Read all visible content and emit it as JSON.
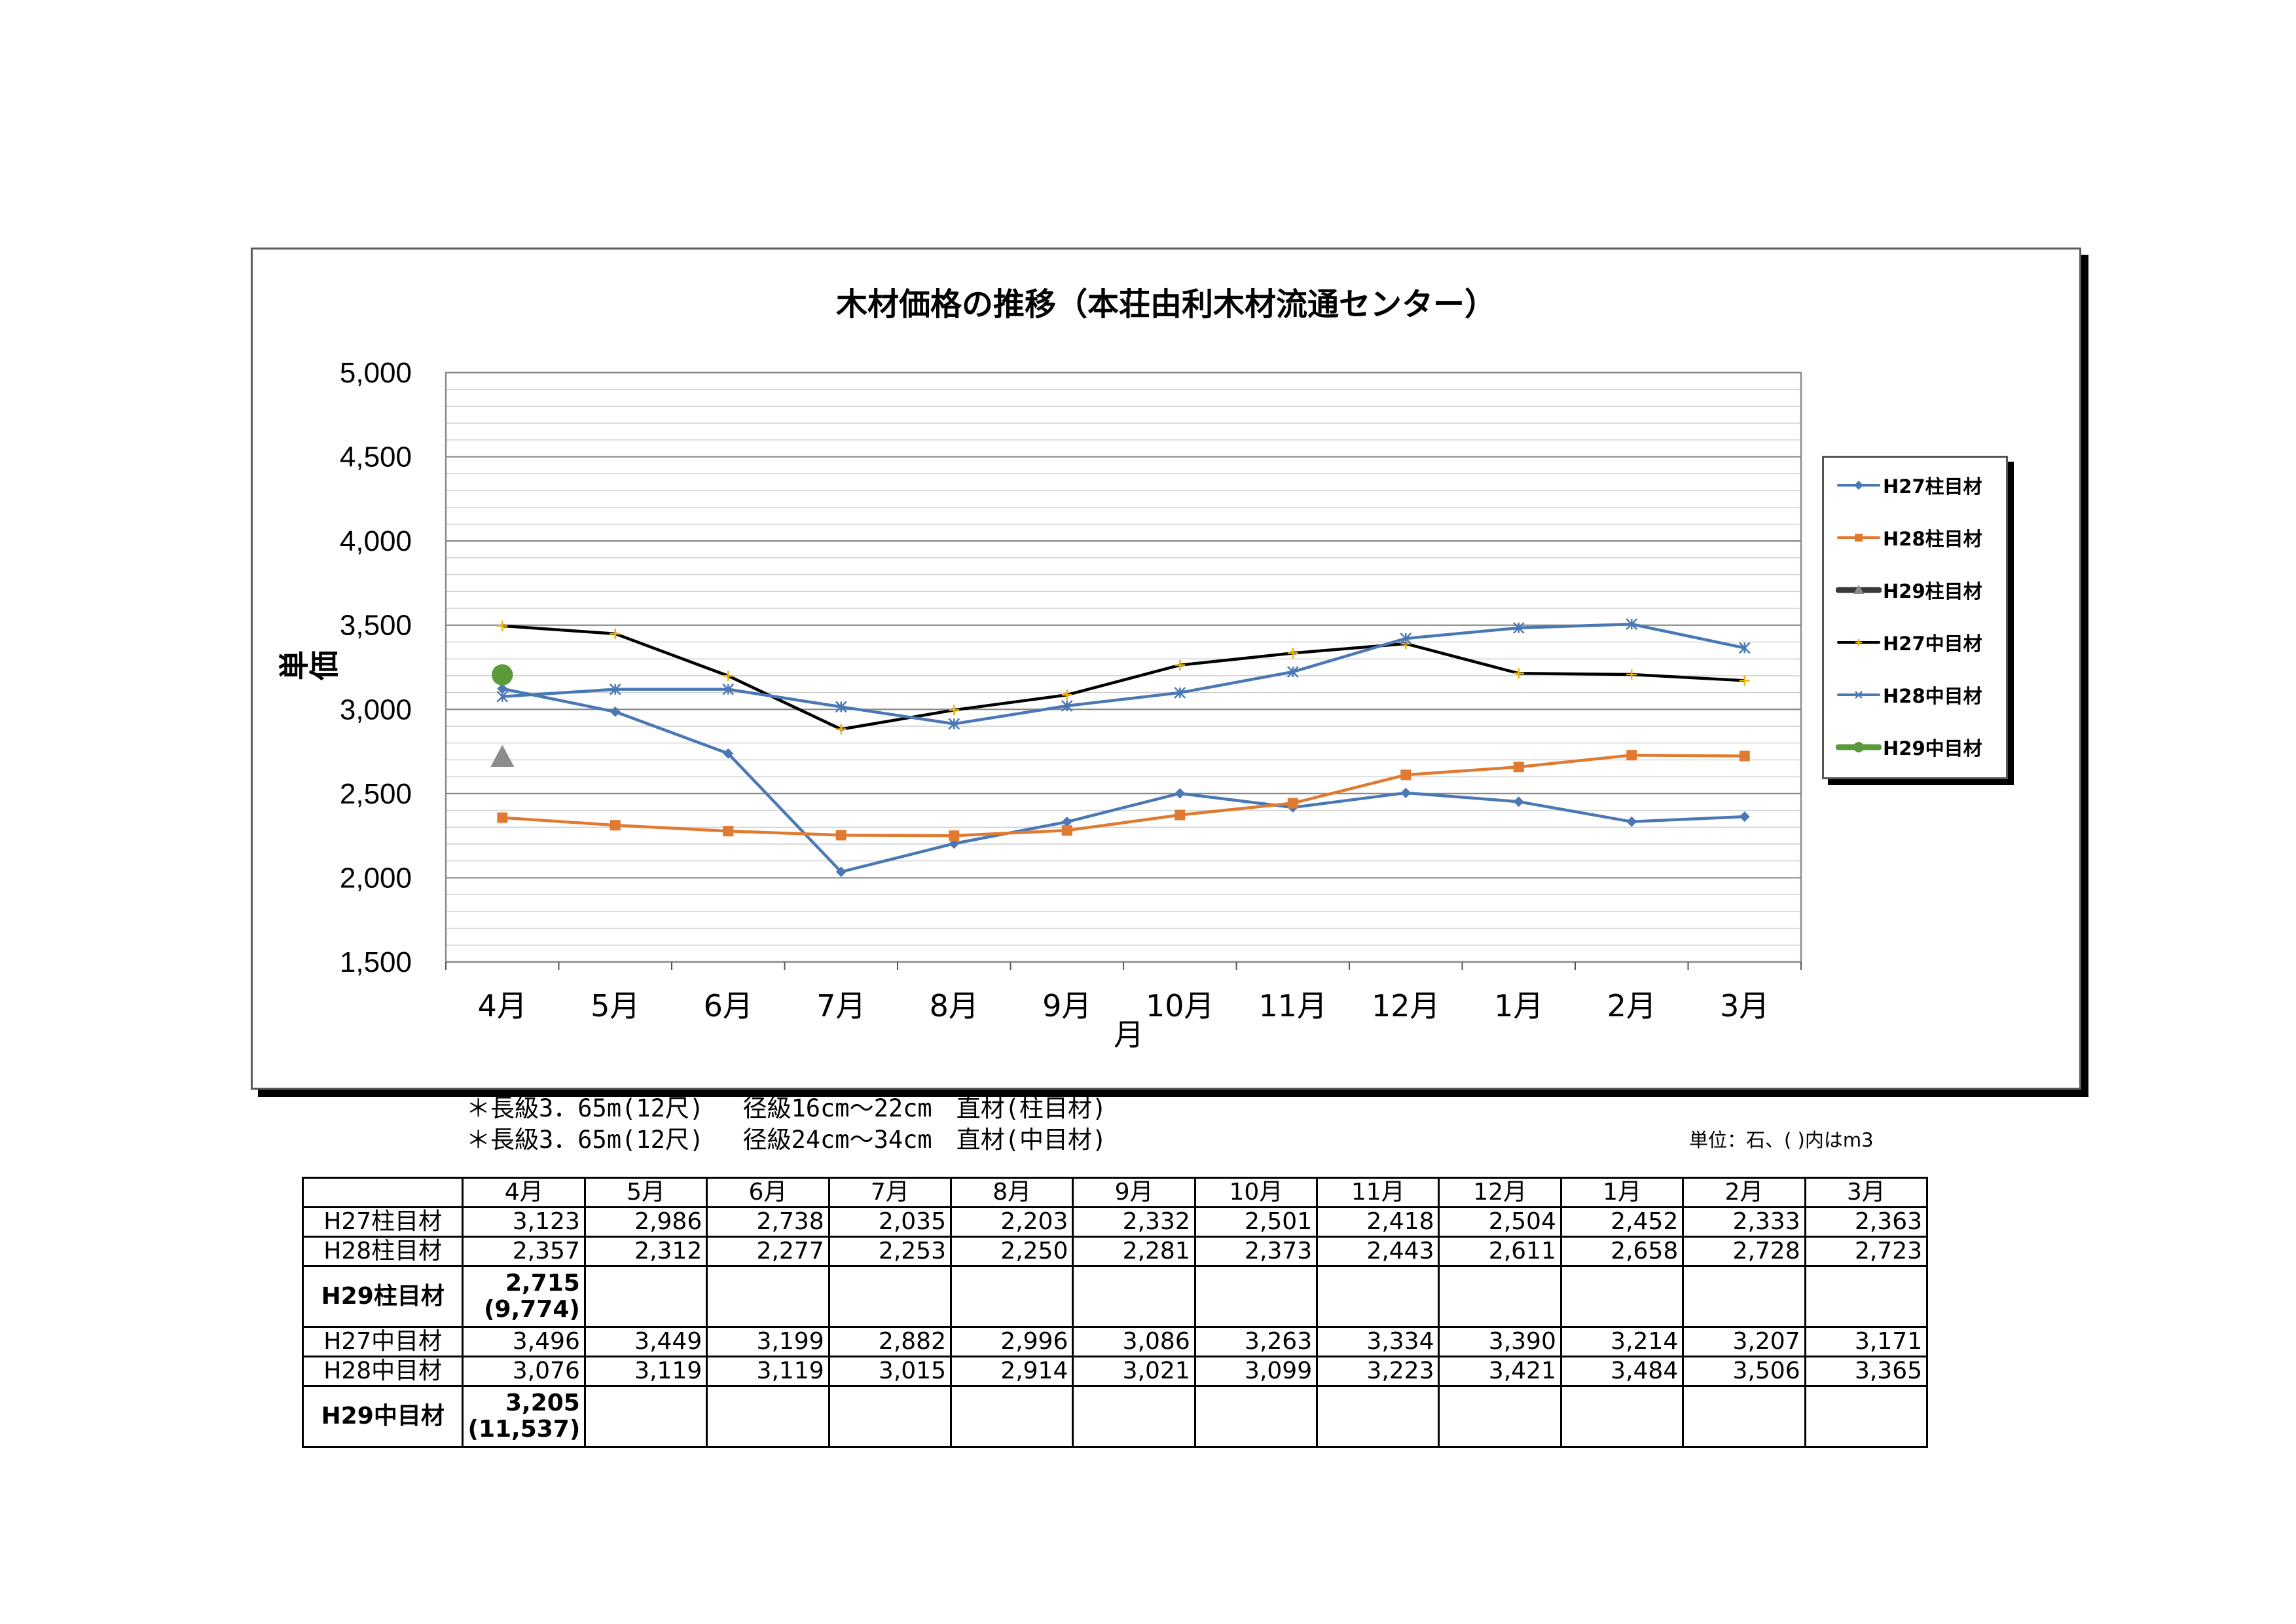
{
  "chart_data": {
    "type": "line",
    "title": "木材価格の推移（本荘由利木材流通センター）",
    "xlabel": "月",
    "ylabel": "単価",
    "categories": [
      "4月",
      "5月",
      "6月",
      "7月",
      "8月",
      "9月",
      "10月",
      "11月",
      "12月",
      "1月",
      "2月",
      "3月"
    ],
    "ylim": [
      1500,
      5000
    ],
    "yticks": [
      "1,500",
      "2,000",
      "2,500",
      "3,000",
      "3,500",
      "4,000",
      "4,500",
      "5,000"
    ],
    "grid": "horizontal minor and major",
    "legend_position": "right",
    "series": [
      {
        "name": "H27柱目材",
        "color": "#4a78b5",
        "marker": "diamond",
        "values": [
          3123,
          2986,
          2738,
          2035,
          2203,
          2332,
          2501,
          2418,
          2504,
          2452,
          2333,
          2363
        ]
      },
      {
        "name": "H28柱目材",
        "color": "#e07a30",
        "marker": "square",
        "values": [
          2357,
          2312,
          2277,
          2253,
          2250,
          2281,
          2373,
          2443,
          2611,
          2658,
          2728,
          2723
        ]
      },
      {
        "name": "H29柱目材",
        "color": "#3a3a3a",
        "marker_color": "#8c8c8c",
        "marker": "triangle",
        "values": [
          2715,
          null,
          null,
          null,
          null,
          null,
          null,
          null,
          null,
          null,
          null,
          null
        ]
      },
      {
        "name": "H27中目材",
        "color": "#000000",
        "marker_color": "#f0b400",
        "marker": "plus",
        "values": [
          3496,
          3449,
          3199,
          2882,
          2996,
          3086,
          3263,
          3334,
          3390,
          3214,
          3207,
          3171
        ]
      },
      {
        "name": "H28中目材",
        "color": "#4a78b5",
        "marker": "star",
        "values": [
          3076,
          3119,
          3119,
          3015,
          2914,
          3021,
          3099,
          3223,
          3421,
          3484,
          3506,
          3365
        ]
      },
      {
        "name": "H29中目材",
        "color": "#5a9a3a",
        "marker": "circle",
        "values": [
          3205,
          null,
          null,
          null,
          null,
          null,
          null,
          null,
          null,
          null,
          null,
          null
        ]
      }
    ]
  },
  "notes": {
    "line1": "＊長級3．65m(12尺)　 径級16cm～22cm　直材(柱目材)",
    "line2": "＊長級3．65m(12尺)　 径級24cm～34cm　直材(中目材)",
    "unit": "単位：石、(  )内はm3"
  },
  "table": {
    "header": [
      "",
      "4月",
      "5月",
      "6月",
      "7月",
      "8月",
      "9月",
      "10月",
      "11月",
      "12月",
      "1月",
      "2月",
      "3月"
    ],
    "rows": [
      {
        "label": "H27柱目材",
        "cells": [
          "3,123",
          "2,986",
          "2,738",
          "2,035",
          "2,203",
          "2,332",
          "2,501",
          "2,418",
          "2,504",
          "2,452",
          "2,333",
          "2,363"
        ]
      },
      {
        "label": "H28柱目材",
        "cells": [
          "2,357",
          "2,312",
          "2,277",
          "2,253",
          "2,250",
          "2,281",
          "2,373",
          "2,443",
          "2,611",
          "2,658",
          "2,728",
          "2,723"
        ]
      },
      {
        "label": "H29柱目材",
        "cells": [
          "2,715",
          "",
          "",
          "",
          "",
          "",
          "",
          "",
          "",
          "",
          "",
          ""
        ],
        "sub": "(9,774)"
      },
      {
        "label": "H27中目材",
        "cells": [
          "3,496",
          "3,449",
          "3,199",
          "2,882",
          "2,996",
          "3,086",
          "3,263",
          "3,334",
          "3,390",
          "3,214",
          "3,207",
          "3,171"
        ]
      },
      {
        "label": "H28中目材",
        "cells": [
          "3,076",
          "3,119",
          "3,119",
          "3,015",
          "2,914",
          "3,021",
          "3,099",
          "3,223",
          "3,421",
          "3,484",
          "3,506",
          "3,365"
        ]
      },
      {
        "label": "H29中目材",
        "cells": [
          "3,205",
          "",
          "",
          "",
          "",
          "",
          "",
          "",
          "",
          "",
          "",
          ""
        ],
        "sub": "(11,537)"
      }
    ]
  }
}
